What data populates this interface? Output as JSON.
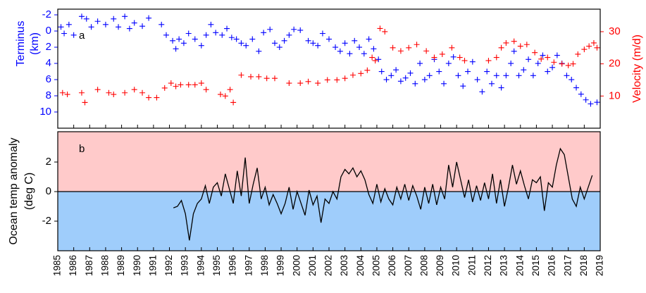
{
  "chart_data": [
    {
      "type": "scatter",
      "panel_label": "a",
      "ylabel": [
        "Terminus",
        "(km)"
      ],
      "ylabel_color": "#0000ff",
      "y2label": "Velocity (m/d)",
      "y2label_color": "#ff0000",
      "xlim": [
        1985,
        2019
      ],
      "ylim": [
        12,
        -2.7
      ],
      "yticks": [
        -2,
        0,
        2,
        4,
        6,
        8,
        10
      ],
      "y2lim": [
        0,
        37
      ],
      "y2ticks": [
        10,
        20,
        30
      ],
      "series": [
        {
          "color": "#0000ff",
          "x": [
            1985.2,
            1985.4,
            1985.7,
            1986.0,
            1986.5,
            1986.8,
            1987.1,
            1987.5,
            1988.0,
            1988.5,
            1988.8,
            1989.2,
            1989.5,
            1989.8,
            1990.3,
            1990.7,
            1991.5,
            1991.8,
            1992.2,
            1992.4,
            1992.6,
            1992.9,
            1993.2,
            1993.6,
            1994.0,
            1994.3,
            1994.6,
            1994.9,
            1995.3,
            1995.6,
            1995.9,
            1996.2,
            1996.5,
            1996.8,
            1997.2,
            1997.6,
            1997.9,
            1998.3,
            1998.6,
            1998.9,
            1999.2,
            1999.5,
            1999.8,
            2000.2,
            2000.7,
            2001.0,
            2001.3,
            2001.6,
            2002.0,
            2002.4,
            2002.7,
            2003.0,
            2003.3,
            2003.6,
            2003.9,
            2004.2,
            2004.5,
            2004.8,
            2005.1,
            2005.3,
            2005.6,
            2005.9,
            2006.2,
            2006.5,
            2006.8,
            2007.1,
            2007.4,
            2007.7,
            2008.0,
            2008.3,
            2008.6,
            2008.9,
            2009.2,
            2009.5,
            2009.8,
            2010.1,
            2010.4,
            2010.7,
            2011.0,
            2011.3,
            2011.6,
            2011.9,
            2012.2,
            2012.5,
            2012.8,
            2013.1,
            2013.4,
            2013.6,
            2013.9,
            2014.2,
            2014.5,
            2014.8,
            2015.1,
            2015.4,
            2015.7,
            2016.0,
            2016.3,
            2016.6,
            2016.9,
            2017.2,
            2017.5,
            2017.8,
            2018.1,
            2018.4,
            2018.8
          ],
          "values": [
            -0.5,
            0.3,
            -0.8,
            0.5,
            -1.8,
            -1.5,
            -0.5,
            -1.2,
            -0.8,
            -1.5,
            -0.5,
            -1.8,
            -0.3,
            -1.0,
            -0.6,
            -1.6,
            -0.8,
            0.5,
            1.2,
            2.2,
            1.0,
            1.5,
            0.3,
            1.0,
            1.8,
            0.5,
            -0.8,
            0.2,
            0.5,
            -0.3,
            0.8,
            1.0,
            1.5,
            1.8,
            1.0,
            2.5,
            0.2,
            -0.2,
            1.5,
            2.0,
            1.2,
            0.5,
            -0.2,
            -0.1,
            1.2,
            1.5,
            1.8,
            0.3,
            1.0,
            2.0,
            2.5,
            1.5,
            2.8,
            1.2,
            2.0,
            2.8,
            1.0,
            2.2,
            3.5,
            5.0,
            6.0,
            5.5,
            4.8,
            6.2,
            5.8,
            5.2,
            6.5,
            4.0,
            6.0,
            5.5,
            3.5,
            5.0,
            6.5,
            4.0,
            3.2,
            5.5,
            6.8,
            5.0,
            3.8,
            6.0,
            7.5,
            5.0,
            6.5,
            5.5,
            7.0,
            5.5,
            4.0,
            2.5,
            5.5,
            4.8,
            3.5,
            5.5,
            4.0,
            3.0,
            5.0,
            4.5,
            3.0,
            4.0,
            5.5,
            6.0,
            7.0,
            7.8,
            8.5,
            9.0,
            8.8
          ]
        },
        {
          "color": "#ff0000",
          "axis": "y2",
          "x": [
            1985.3,
            1985.6,
            1986.5,
            1986.7,
            1987.5,
            1988.2,
            1988.5,
            1989.2,
            1989.8,
            1990.3,
            1990.7,
            1991.2,
            1991.7,
            1992.1,
            1992.4,
            1992.7,
            1993.2,
            1993.6,
            1994.0,
            1994.3,
            1995.2,
            1995.5,
            1995.8,
            1996.0,
            1996.5,
            1997.1,
            1997.6,
            1998.1,
            1998.6,
            1999.5,
            2000.2,
            2000.7,
            2001.3,
            2001.9,
            2002.5,
            2003.0,
            2003.5,
            2004.0,
            2004.4,
            2004.7,
            2004.9,
            2005.2,
            2005.5,
            2006.0,
            2006.5,
            2007.0,
            2007.5,
            2008.1,
            2008.6,
            2009.1,
            2009.7,
            2010.2,
            2010.5,
            2012.0,
            2012.5,
            2012.8,
            2013.1,
            2013.6,
            2014.0,
            2014.4,
            2014.9,
            2015.3,
            2015.7,
            2016.1,
            2016.6,
            2017.0,
            2017.3,
            2017.6,
            2018.0,
            2018.3,
            2018.6,
            2018.8
          ],
          "values": [
            11,
            10.5,
            11,
            8,
            12,
            11,
            10.5,
            11,
            12,
            11,
            9.5,
            9.5,
            12.5,
            14,
            13,
            13.5,
            13.5,
            13.5,
            14,
            12,
            10.5,
            10,
            12,
            8,
            16.5,
            16,
            16,
            15.5,
            15.5,
            14,
            14,
            14.5,
            14,
            15,
            15,
            15.5,
            16.5,
            17,
            18,
            22,
            21,
            31,
            30,
            25,
            24,
            25,
            26,
            24,
            22,
            23,
            25,
            22,
            21,
            21,
            22,
            25,
            26.5,
            27,
            25.5,
            26,
            23.5,
            21.5,
            22,
            20.5,
            20,
            19.5,
            20,
            23,
            24.5,
            25.5,
            26.5,
            25
          ]
        }
      ]
    },
    {
      "type": "line",
      "panel_label": "b",
      "ylabel": [
        "Ocean temp anomaly",
        "(deg C)"
      ],
      "xlim": [
        1985,
        2019
      ],
      "ylim": [
        -4,
        4.05
      ],
      "yticks": [
        -2,
        0,
        2
      ],
      "xticks": [
        1985,
        1986,
        1987,
        1988,
        1989,
        1990,
        1991,
        1992,
        1993,
        1994,
        1995,
        1996,
        1997,
        1998,
        1999,
        2000,
        2001,
        2002,
        2003,
        2004,
        2005,
        2006,
        2007,
        2008,
        2009,
        2010,
        2011,
        2012,
        2013,
        2014,
        2015,
        2016,
        2017,
        2018,
        2019
      ],
      "shade_above": "#ffcaca",
      "shade_below": "#9fcdfb",
      "series": [
        {
          "color": "#000000",
          "x": [
            1992.25,
            1992.5,
            1992.75,
            1993.0,
            1993.25,
            1993.5,
            1993.75,
            1994.0,
            1994.25,
            1994.5,
            1994.75,
            1995.0,
            1995.25,
            1995.5,
            1995.75,
            1996.0,
            1996.25,
            1996.5,
            1996.75,
            1997.0,
            1997.25,
            1997.5,
            1997.75,
            1998.0,
            1998.25,
            1998.5,
            1998.75,
            1999.0,
            1999.25,
            1999.5,
            1999.75,
            2000.0,
            2000.25,
            2000.5,
            2000.75,
            2001.0,
            2001.25,
            2001.5,
            2001.75,
            2002.0,
            2002.25,
            2002.5,
            2002.75,
            2003.0,
            2003.25,
            2003.5,
            2003.75,
            2004.0,
            2004.25,
            2004.5,
            2004.75,
            2005.0,
            2005.25,
            2005.5,
            2005.75,
            2006.0,
            2006.25,
            2006.5,
            2006.75,
            2007.0,
            2007.25,
            2007.5,
            2007.75,
            2008.0,
            2008.25,
            2008.5,
            2008.75,
            2009.0,
            2009.25,
            2009.5,
            2009.75,
            2010.0,
            2010.25,
            2010.5,
            2010.75,
            2011.0,
            2011.25,
            2011.5,
            2011.75,
            2012.0,
            2012.25,
            2012.5,
            2012.75,
            2013.0,
            2013.25,
            2013.5,
            2013.75,
            2014.0,
            2014.25,
            2014.5,
            2014.75,
            2015.0,
            2015.25,
            2015.5,
            2015.75,
            2016.0,
            2016.25,
            2016.5,
            2016.75,
            2017.0,
            2017.25,
            2017.5,
            2017.75,
            2018.0,
            2018.25,
            2018.5
          ],
          "values": [
            -1.1,
            -1.0,
            -0.6,
            -1.5,
            -3.3,
            -1.5,
            -0.8,
            -0.5,
            0.4,
            -0.8,
            0.3,
            0.6,
            -0.3,
            1.2,
            0.2,
            -0.8,
            1.4,
            -0.3,
            2.3,
            -0.8,
            0.5,
            1.6,
            -0.5,
            0.3,
            -0.9,
            -0.2,
            -0.8,
            -1.5,
            -0.8,
            0.3,
            -1.2,
            0.0,
            -0.8,
            -1.6,
            0.1,
            -0.9,
            -0.3,
            -2.1,
            -0.5,
            -0.8,
            0.0,
            -0.5,
            1.0,
            1.5,
            1.2,
            1.6,
            1.0,
            1.4,
            0.8,
            -0.2,
            -0.8,
            0.5,
            -0.7,
            0.2,
            -0.5,
            -0.9,
            0.3,
            -0.5,
            0.5,
            -0.6,
            0.4,
            -0.3,
            -1.2,
            0.3,
            -0.8,
            0.5,
            -0.9,
            0.3,
            -0.5,
            1.8,
            0.3,
            2.0,
            0.8,
            -0.4,
            0.8,
            -0.7,
            0.4,
            -0.6,
            0.6,
            -0.5,
            1.2,
            -0.8,
            0.8,
            -1.0,
            0.3,
            1.8,
            0.5,
            1.4,
            0.4,
            -0.5,
            0.8,
            0.6,
            1.0,
            -1.3,
            0.6,
            0.3,
            1.8,
            2.9,
            2.5,
            1.0,
            -0.5,
            -1.0,
            0.3,
            -0.5,
            0.3,
            1.1
          ]
        }
      ]
    }
  ]
}
